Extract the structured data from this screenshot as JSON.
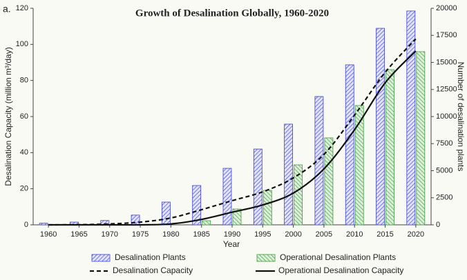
{
  "chart_data": {
    "type": "bar",
    "panel_label": "a.",
    "title": "Growth of Desalination Globally, 1960-2020",
    "x_label": "Year",
    "y_label": "Desalination Capacity (million m³/day)",
    "y2_label": "Number of desalination plants",
    "categories": [
      "1960",
      "1965",
      "1970",
      "1975",
      "1980",
      "1985",
      "1990",
      "1995",
      "2000",
      "2005",
      "2010",
      "2015",
      "2020"
    ],
    "ylim": [
      0,
      120
    ],
    "yticks": [
      0,
      20,
      40,
      60,
      80,
      100,
      120
    ],
    "y2lim": [
      0,
      20000
    ],
    "y2ticks": [
      0,
      2500,
      5000,
      7500,
      10000,
      12500,
      15000,
      17500,
      20000
    ],
    "series": [
      {
        "name": "Desalination Plants",
        "type": "bar",
        "axis": "y2",
        "color": "#3a3fd6",
        "values": [
          150,
          250,
          400,
          900,
          2100,
          3630,
          5220,
          7000,
          9300,
          11850,
          14780,
          18150,
          19750
        ]
      },
      {
        "name": "Operational Desalination Plants",
        "type": "bar",
        "axis": "y2",
        "color": "#3e9a3e",
        "values": [
          0,
          0,
          0,
          0,
          0,
          380,
          1460,
          3180,
          5540,
          8030,
          11020,
          14330,
          15990
        ]
      },
      {
        "name": "Desalination Capacity",
        "type": "line",
        "dashed": true,
        "color": "#111111",
        "values": [
          0,
          0.1,
          0.5,
          1.5,
          3.8,
          8.4,
          13.4,
          18.3,
          26,
          39,
          60.8,
          84.5,
          103
        ]
      },
      {
        "name": "Operational Desalination Capacity",
        "type": "line",
        "dashed": false,
        "color": "#111111",
        "values": [
          0,
          0,
          0,
          0,
          0.5,
          3,
          7,
          11,
          17.6,
          31,
          52.7,
          78.7,
          96.3
        ]
      }
    ]
  }
}
